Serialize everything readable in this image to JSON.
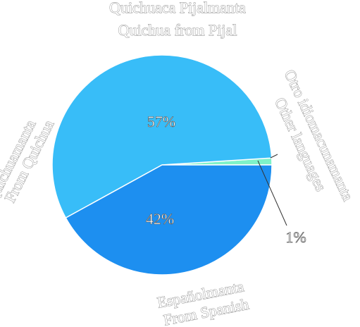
{
  "chart_data": {
    "type": "pie",
    "title": "Quichuaca Pijalmanta",
    "subtitle": "Quichua from Pijal",
    "categories": [
      "Quichuamanta / From Quichua",
      "Españolmanta / From Spanish",
      "Otro idiomacunamanta / Other languages"
    ],
    "values": [
      57,
      42,
      1
    ],
    "slices": [
      {
        "label_line1": "Quichuamanta",
        "label_line2": "From Quichua",
        "value": 57,
        "percent_label": "57%",
        "color": "#38BDF8"
      },
      {
        "label_line1": "Españolmanta",
        "label_line2": "From Spanish",
        "value": 42,
        "percent_label": "42%",
        "color": "#1D8FF0"
      },
      {
        "label_line1": "Otro idiomacunamanta",
        "label_line2": "Other languages",
        "value": 1,
        "percent_label": "1%",
        "color": "#7EF2C8"
      }
    ]
  }
}
